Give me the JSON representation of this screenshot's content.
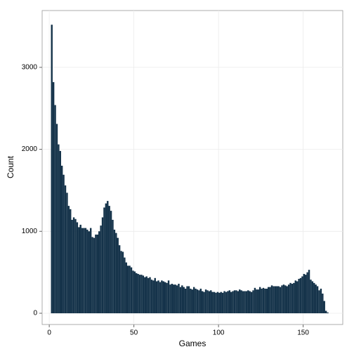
{
  "chart_data": {
    "type": "histogram",
    "xlabel": "Games",
    "ylabel": "Count",
    "color": "#15334a",
    "grid": true,
    "bins": [
      1,
      2,
      3,
      4,
      5,
      6,
      7,
      8,
      9,
      10,
      11,
      12,
      13,
      14,
      15,
      16,
      17,
      18,
      19,
      20,
      21,
      22,
      23,
      24,
      25,
      26,
      27,
      28,
      29,
      30,
      31,
      32,
      33,
      34,
      35,
      36,
      37,
      38,
      39,
      40,
      41,
      42,
      43,
      44,
      45,
      46,
      47,
      48,
      49,
      50,
      51,
      52,
      53,
      54,
      55,
      56,
      57,
      58,
      59,
      60,
      61,
      62,
      63,
      64,
      65,
      66,
      67,
      68,
      69,
      70,
      71,
      72,
      73,
      74,
      75,
      76,
      77,
      78,
      79,
      80,
      81,
      82,
      83,
      84,
      85,
      86,
      87,
      88,
      89,
      90,
      91,
      92,
      93,
      94,
      95,
      96,
      97,
      98,
      99,
      100,
      101,
      102,
      103,
      104,
      105,
      106,
      107,
      108,
      109,
      110,
      111,
      112,
      113,
      114,
      115,
      116,
      117,
      118,
      119,
      120,
      121,
      122,
      123,
      124,
      125,
      126,
      127,
      128,
      129,
      130,
      131,
      132,
      133,
      134,
      135,
      136,
      137,
      138,
      139,
      140,
      141,
      142,
      143,
      144,
      145,
      146,
      147,
      148,
      149,
      150,
      151,
      152,
      153,
      154,
      155,
      156,
      157,
      158,
      159,
      160,
      161,
      162,
      163,
      164,
      165
    ],
    "values": [
      3520,
      2820,
      2540,
      2310,
      2060,
      1980,
      1800,
      1690,
      1560,
      1470,
      1310,
      1270,
      1140,
      1170,
      1150,
      1110,
      1050,
      1080,
      1040,
      1040,
      1040,
      1020,
      1000,
      1040,
      930,
      920,
      960,
      960,
      1000,
      1070,
      1170,
      1290,
      1340,
      1370,
      1310,
      1250,
      1140,
      1020,
      980,
      920,
      830,
      760,
      750,
      680,
      620,
      580,
      580,
      560,
      520,
      510,
      490,
      480,
      470,
      470,
      460,
      440,
      450,
      430,
      440,
      410,
      400,
      430,
      390,
      400,
      380,
      400,
      390,
      380,
      370,
      400,
      350,
      360,
      350,
      350,
      340,
      360,
      320,
      340,
      320,
      300,
      330,
      330,
      300,
      290,
      320,
      300,
      290,
      280,
      300,
      270,
      260,
      290,
      280,
      270,
      280,
      260,
      260,
      250,
      260,
      250,
      260,
      250,
      270,
      260,
      270,
      280,
      260,
      270,
      280,
      280,
      270,
      290,
      280,
      270,
      270,
      270,
      280,
      270,
      260,
      280,
      310,
      290,
      290,
      320,
      300,
      310,
      300,
      300,
      320,
      320,
      340,
      330,
      330,
      330,
      330,
      320,
      340,
      350,
      340,
      330,
      350,
      370,
      360,
      370,
      400,
      390,
      420,
      430,
      450,
      480,
      470,
      500,
      530,
      410,
      390,
      370,
      350,
      330,
      280,
      300,
      240,
      150,
      30,
      10
    ],
    "xlim": [
      -4.2,
      173.4
    ],
    "ylim": [
      -137,
      3693
    ],
    "xticks": [
      0,
      50,
      100,
      150
    ],
    "yticks": [
      0,
      1000,
      2000,
      3000
    ]
  }
}
